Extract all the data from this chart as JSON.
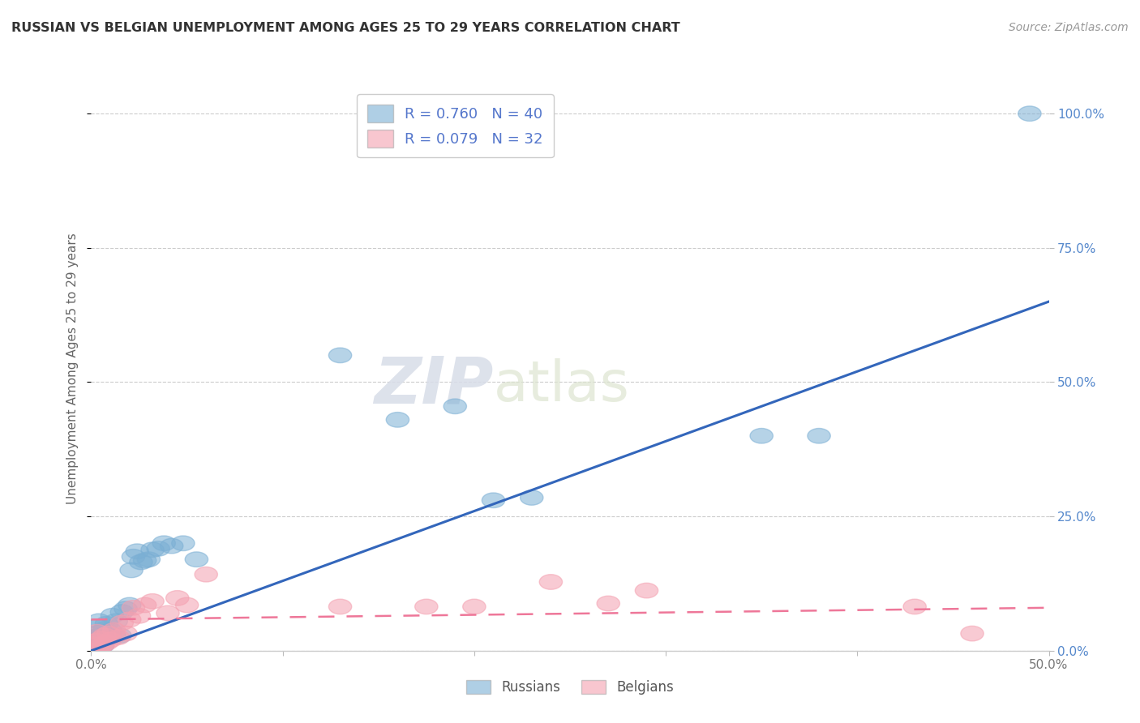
{
  "title": "RUSSIAN VS BELGIAN UNEMPLOYMENT AMONG AGES 25 TO 29 YEARS CORRELATION CHART",
  "source": "Source: ZipAtlas.com",
  "ylabel": "Unemployment Among Ages 25 to 29 years",
  "xlim": [
    0.0,
    0.5
  ],
  "ylim": [
    0.0,
    1.05
  ],
  "xticks": [
    0.0,
    0.1,
    0.2,
    0.3,
    0.4,
    0.5
  ],
  "xticklabels": [
    "0.0%",
    "",
    "",
    "",
    "",
    "50.0%"
  ],
  "yticks": [
    0.0,
    0.25,
    0.5,
    0.75,
    1.0
  ],
  "yticklabels": [
    "0.0%",
    "25.0%",
    "50.0%",
    "75.0%",
    "100.0%"
  ],
  "legend_r_russian": "R = 0.760",
  "legend_n_russian": "N = 40",
  "legend_r_belgian": "R = 0.079",
  "legend_n_belgian": "N = 32",
  "russian_color": "#7BAFD4",
  "belgian_color": "#F4A0B0",
  "russian_line_color": "#3366BB",
  "belgian_line_color": "#EE7799",
  "watermark_zip": "ZIP",
  "watermark_atlas": "atlas",
  "background_color": "#FFFFFF",
  "russian_points_x": [
    0.001,
    0.002,
    0.003,
    0.003,
    0.004,
    0.004,
    0.005,
    0.005,
    0.006,
    0.007,
    0.008,
    0.009,
    0.01,
    0.011,
    0.012,
    0.013,
    0.015,
    0.016,
    0.018,
    0.02,
    0.021,
    0.022,
    0.024,
    0.026,
    0.028,
    0.03,
    0.032,
    0.035,
    0.038,
    0.042,
    0.048,
    0.055,
    0.13,
    0.16,
    0.19,
    0.21,
    0.23,
    0.35,
    0.38,
    0.49
  ],
  "russian_points_y": [
    0.02,
    0.025,
    0.015,
    0.045,
    0.028,
    0.055,
    0.02,
    0.035,
    0.01,
    0.04,
    0.05,
    0.025,
    0.038,
    0.065,
    0.028,
    0.055,
    0.028,
    0.072,
    0.078,
    0.085,
    0.15,
    0.175,
    0.185,
    0.165,
    0.168,
    0.17,
    0.188,
    0.19,
    0.2,
    0.195,
    0.2,
    0.17,
    0.55,
    0.43,
    0.455,
    0.28,
    0.285,
    0.4,
    0.4,
    1.0
  ],
  "belgian_points_x": [
    0.001,
    0.002,
    0.003,
    0.003,
    0.004,
    0.005,
    0.006,
    0.007,
    0.008,
    0.009,
    0.01,
    0.012,
    0.014,
    0.016,
    0.018,
    0.02,
    0.022,
    0.025,
    0.028,
    0.032,
    0.04,
    0.045,
    0.05,
    0.06,
    0.13,
    0.175,
    0.2,
    0.24,
    0.27,
    0.29,
    0.43,
    0.46
  ],
  "belgian_points_y": [
    0.012,
    0.005,
    0.018,
    0.035,
    0.002,
    0.022,
    0.01,
    0.028,
    0.015,
    0.032,
    0.02,
    0.038,
    0.025,
    0.052,
    0.032,
    0.058,
    0.08,
    0.065,
    0.085,
    0.092,
    0.07,
    0.098,
    0.085,
    0.142,
    0.082,
    0.082,
    0.082,
    0.128,
    0.088,
    0.112,
    0.082,
    0.032
  ],
  "russian_line_x": [
    0.0,
    0.5
  ],
  "russian_line_y": [
    0.0,
    0.65
  ],
  "belgian_line_x": [
    0.0,
    0.5
  ],
  "belgian_line_y": [
    0.058,
    0.08
  ]
}
